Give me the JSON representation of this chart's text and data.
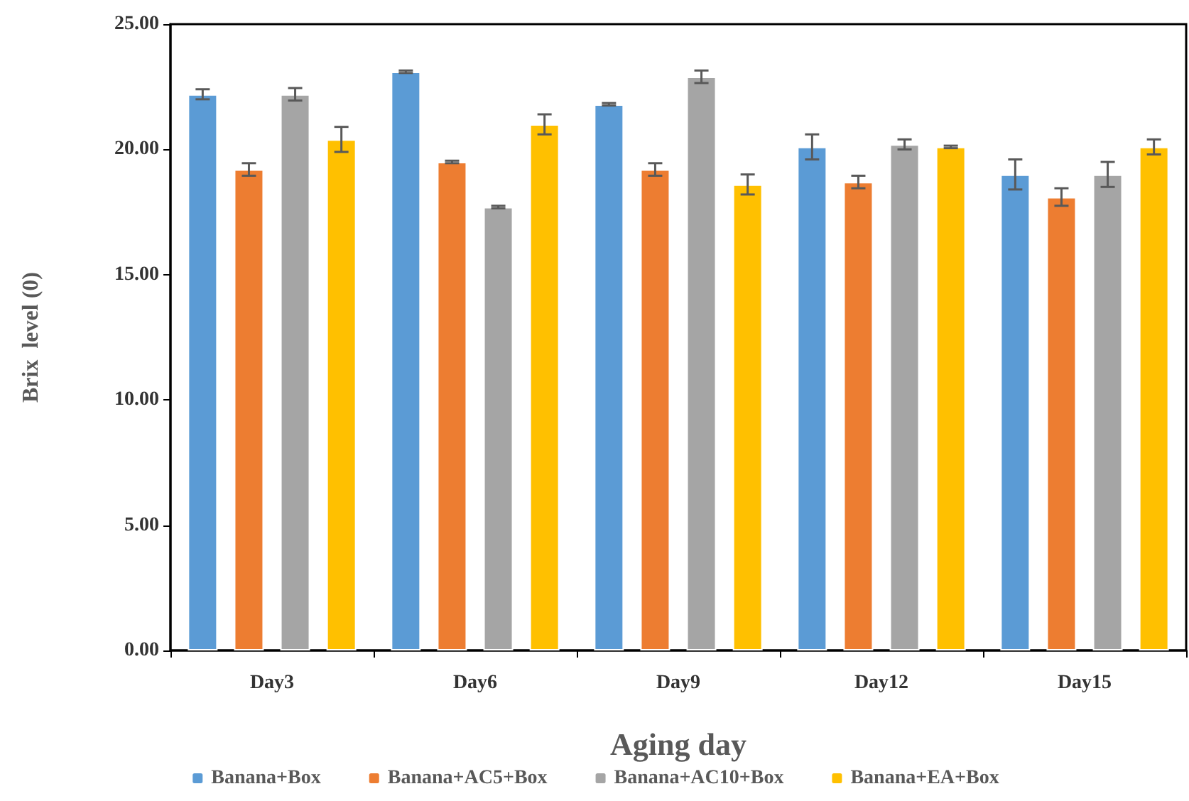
{
  "chart_data": {
    "type": "bar",
    "xlabel": "Aging day",
    "ylabel": "Brix  level (0)",
    "categories": [
      "Day3",
      "Day6",
      "Day9",
      "Day12",
      "Day15"
    ],
    "series": [
      {
        "name": "Banana+Box",
        "color": "#5b9bd5",
        "values": [
          22.2,
          23.1,
          21.8,
          20.1,
          19.0
        ],
        "errors": [
          0.2,
          0.05,
          0.05,
          0.5,
          0.6
        ]
      },
      {
        "name": "Banana+AC5+Box",
        "color": "#ed7d31",
        "values": [
          19.2,
          19.5,
          19.2,
          18.7,
          18.1
        ],
        "errors": [
          0.25,
          0.05,
          0.25,
          0.25,
          0.35
        ]
      },
      {
        "name": "Banana+AC10+Box",
        "color": "#a5a5a5",
        "values": [
          22.2,
          17.7,
          22.9,
          20.2,
          19.0
        ],
        "errors": [
          0.25,
          0.05,
          0.25,
          0.2,
          0.5
        ]
      },
      {
        "name": "Banana+EA+Box",
        "color": "#ffc000",
        "values": [
          20.4,
          21.0,
          18.6,
          20.1,
          20.1
        ],
        "errors": [
          0.5,
          0.4,
          0.4,
          0.05,
          0.3
        ]
      }
    ],
    "ylim": [
      0,
      25
    ],
    "yticks": [
      {
        "value": 0,
        "label": "0.00"
      },
      {
        "value": 5,
        "label": "5.00"
      },
      {
        "value": 10,
        "label": "10.00"
      },
      {
        "value": 15,
        "label": "15.00"
      },
      {
        "value": 20,
        "label": "20.00"
      },
      {
        "value": 25,
        "label": "25.00"
      }
    ],
    "grid": false,
    "legend": "bottom"
  }
}
